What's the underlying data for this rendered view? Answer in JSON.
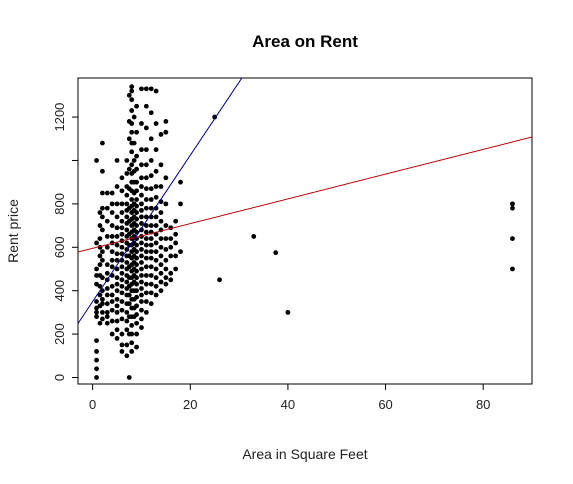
{
  "chart_data": {
    "type": "scatter",
    "title": "Area on Rent",
    "xlabel": "Area in Square Feet",
    "ylabel": "Rent price",
    "xlim": [
      -3,
      90
    ],
    "ylim": [
      -30,
      1380
    ],
    "x_ticks": [
      0,
      20,
      40,
      60,
      80
    ],
    "x_tick_labels": [
      "0",
      "20",
      "40",
      "60",
      "80"
    ],
    "y_ticks": [
      0,
      200,
      400,
      600,
      800,
      1000,
      1200
    ],
    "y_tick_labels": [
      "0",
      "200",
      "400",
      "600",
      "800",
      "",
      "1200"
    ],
    "grid": false,
    "legend": "none",
    "colors": {
      "points": "#000000",
      "red_line": "#c00000",
      "blue_line": "#000080",
      "axis": "#000000"
    },
    "lines": [
      {
        "color": "red",
        "intercept": 595,
        "slope": 5.7
      },
      {
        "color": "blue",
        "intercept": 350,
        "slope": 33.7
      }
    ],
    "points": [
      [
        0.8,
        0
      ],
      [
        0.8,
        40
      ],
      [
        0.8,
        80
      ],
      [
        0.8,
        120
      ],
      [
        0.8,
        170
      ],
      [
        0.8,
        280
      ],
      [
        0.8,
        300
      ],
      [
        0.8,
        320
      ],
      [
        0.8,
        350
      ],
      [
        0.8,
        430
      ],
      [
        0.8,
        470
      ],
      [
        0.8,
        500
      ],
      [
        0.8,
        620
      ],
      [
        0.8,
        1000
      ],
      [
        1.5,
        250
      ],
      [
        1.5,
        330
      ],
      [
        1.5,
        380
      ],
      [
        1.5,
        420
      ],
      [
        1.5,
        470
      ],
      [
        1.5,
        520
      ],
      [
        1.5,
        560
      ],
      [
        1.5,
        600
      ],
      [
        1.5,
        640
      ],
      [
        1.5,
        700
      ],
      [
        1.5,
        760
      ],
      [
        2,
        1080
      ],
      [
        2,
        950
      ],
      [
        2,
        850
      ],
      [
        2,
        780
      ],
      [
        2,
        740
      ],
      [
        2,
        680
      ],
      [
        2,
        580
      ],
      [
        2,
        540
      ],
      [
        2,
        460
      ],
      [
        2,
        400
      ],
      [
        2,
        360
      ],
      [
        2,
        340
      ],
      [
        2,
        300
      ],
      [
        2,
        270
      ],
      [
        3,
        850
      ],
      [
        3,
        780
      ],
      [
        3,
        720
      ],
      [
        3,
        650
      ],
      [
        3,
        600
      ],
      [
        3,
        520
      ],
      [
        3,
        480
      ],
      [
        3,
        450
      ],
      [
        3,
        410
      ],
      [
        3,
        380
      ],
      [
        3,
        340
      ],
      [
        3,
        300
      ],
      [
        3,
        280
      ],
      [
        3,
        250
      ],
      [
        4,
        850
      ],
      [
        4,
        800
      ],
      [
        4,
        760
      ],
      [
        4,
        700
      ],
      [
        4,
        650
      ],
      [
        4,
        620
      ],
      [
        4,
        580
      ],
      [
        4,
        540
      ],
      [
        4,
        510
      ],
      [
        4,
        470
      ],
      [
        4,
        420
      ],
      [
        4,
        380
      ],
      [
        4,
        350
      ],
      [
        4,
        310
      ],
      [
        4,
        260
      ],
      [
        4,
        200
      ],
      [
        5,
        1000
      ],
      [
        5,
        880
      ],
      [
        5,
        800
      ],
      [
        5,
        740
      ],
      [
        5,
        690
      ],
      [
        5,
        650
      ],
      [
        5,
        610
      ],
      [
        5,
        570
      ],
      [
        5,
        540
      ],
      [
        5,
        500
      ],
      [
        5,
        460
      ],
      [
        5,
        430
      ],
      [
        5,
        400
      ],
      [
        5,
        360
      ],
      [
        5,
        330
      ],
      [
        5,
        300
      ],
      [
        5,
        260
      ],
      [
        5,
        220
      ],
      [
        5,
        180
      ],
      [
        6,
        920
      ],
      [
        6,
        860
      ],
      [
        6,
        800
      ],
      [
        6,
        760
      ],
      [
        6,
        720
      ],
      [
        6,
        690
      ],
      [
        6,
        660
      ],
      [
        6,
        630
      ],
      [
        6,
        600
      ],
      [
        6,
        570
      ],
      [
        6,
        540
      ],
      [
        6,
        510
      ],
      [
        6,
        480
      ],
      [
        6,
        450
      ],
      [
        6,
        420
      ],
      [
        6,
        390
      ],
      [
        6,
        350
      ],
      [
        6,
        310
      ],
      [
        6,
        270
      ],
      [
        6,
        200
      ],
      [
        6,
        150
      ],
      [
        6,
        120
      ],
      [
        7,
        1000
      ],
      [
        7,
        940
      ],
      [
        7,
        880
      ],
      [
        7,
        840
      ],
      [
        7,
        800
      ],
      [
        7,
        770
      ],
      [
        7,
        740
      ],
      [
        7,
        710
      ],
      [
        7,
        680
      ],
      [
        7,
        650
      ],
      [
        7,
        620
      ],
      [
        7,
        590
      ],
      [
        7,
        560
      ],
      [
        7,
        530
      ],
      [
        7,
        500
      ],
      [
        7,
        470
      ],
      [
        7,
        440
      ],
      [
        7,
        410
      ],
      [
        7,
        380
      ],
      [
        7,
        340
      ],
      [
        7,
        300
      ],
      [
        7,
        260
      ],
      [
        7,
        220
      ],
      [
        7,
        150
      ],
      [
        7,
        100
      ],
      [
        7.5,
        1180
      ],
      [
        7.5,
        1300
      ],
      [
        7.5,
        1100
      ],
      [
        7.5,
        960
      ],
      [
        7.5,
        870
      ],
      [
        7.5,
        780
      ],
      [
        7.5,
        720
      ],
      [
        7.5,
        660
      ],
      [
        7.5,
        610
      ],
      [
        7.5,
        560
      ],
      [
        7.5,
        510
      ],
      [
        7.5,
        460
      ],
      [
        7.5,
        420
      ],
      [
        7.5,
        380
      ],
      [
        7.5,
        340
      ],
      [
        7.5,
        280
      ],
      [
        7.5,
        200
      ],
      [
        7.5,
        0
      ],
      [
        8,
        1340
      ],
      [
        8,
        1320
      ],
      [
        8,
        1280
      ],
      [
        8,
        1230
      ],
      [
        8,
        1170
      ],
      [
        8,
        1130
      ],
      [
        8,
        1080
      ],
      [
        8,
        1040
      ],
      [
        8,
        980
      ],
      [
        8,
        940
      ],
      [
        8,
        900
      ],
      [
        8,
        860
      ],
      [
        8,
        820
      ],
      [
        8,
        790
      ],
      [
        8,
        760
      ],
      [
        8,
        730
      ],
      [
        8,
        700
      ],
      [
        8,
        670
      ],
      [
        8,
        640
      ],
      [
        8,
        610
      ],
      [
        8,
        580
      ],
      [
        8,
        550
      ],
      [
        8,
        520
      ],
      [
        8,
        490
      ],
      [
        8,
        460
      ],
      [
        8,
        430
      ],
      [
        8,
        400
      ],
      [
        8,
        360
      ],
      [
        8,
        320
      ],
      [
        8,
        280
      ],
      [
        8,
        240
      ],
      [
        8,
        200
      ],
      [
        8,
        160
      ],
      [
        8,
        120
      ],
      [
        8.5,
        1200
      ],
      [
        8.5,
        1080
      ],
      [
        8.5,
        1000
      ],
      [
        8.5,
        950
      ],
      [
        8.5,
        900
      ],
      [
        8.5,
        850
      ],
      [
        8.5,
        800
      ],
      [
        8.5,
        770
      ],
      [
        8.5,
        740
      ],
      [
        8.5,
        710
      ],
      [
        8.5,
        680
      ],
      [
        8.5,
        650
      ],
      [
        8.5,
        620
      ],
      [
        8.5,
        590
      ],
      [
        8.5,
        560
      ],
      [
        8.5,
        530
      ],
      [
        8.5,
        500
      ],
      [
        8.5,
        470
      ],
      [
        8.5,
        440
      ],
      [
        8.5,
        400
      ],
      [
        8.5,
        360
      ],
      [
        8.5,
        320
      ],
      [
        8.5,
        280
      ],
      [
        9,
        1250
      ],
      [
        9,
        1130
      ],
      [
        9,
        1020
      ],
      [
        9,
        960
      ],
      [
        9,
        900
      ],
      [
        9,
        860
      ],
      [
        9,
        820
      ],
      [
        9,
        790
      ],
      [
        9,
        760
      ],
      [
        9,
        730
      ],
      [
        9,
        700
      ],
      [
        9,
        670
      ],
      [
        9,
        640
      ],
      [
        9,
        610
      ],
      [
        9,
        580
      ],
      [
        9,
        550
      ],
      [
        9,
        520
      ],
      [
        9,
        490
      ],
      [
        9,
        460
      ],
      [
        9,
        430
      ],
      [
        9,
        400
      ],
      [
        9,
        370
      ],
      [
        9,
        330
      ],
      [
        9,
        290
      ],
      [
        9,
        250
      ],
      [
        9,
        200
      ],
      [
        9,
        140
      ],
      [
        10,
        1330
      ],
      [
        10,
        1170
      ],
      [
        10,
        1050
      ],
      [
        10,
        980
      ],
      [
        10,
        920
      ],
      [
        10,
        880
      ],
      [
        10,
        840
      ],
      [
        10,
        800
      ],
      [
        10,
        770
      ],
      [
        10,
        740
      ],
      [
        10,
        710
      ],
      [
        10,
        680
      ],
      [
        10,
        650
      ],
      [
        10,
        620
      ],
      [
        10,
        590
      ],
      [
        10,
        560
      ],
      [
        10,
        530
      ],
      [
        10,
        500
      ],
      [
        10,
        470
      ],
      [
        10,
        440
      ],
      [
        10,
        410
      ],
      [
        10,
        380
      ],
      [
        10,
        350
      ],
      [
        10,
        310
      ],
      [
        10,
        270
      ],
      [
        10,
        230
      ],
      [
        11,
        1330
      ],
      [
        11,
        1250
      ],
      [
        11,
        1150
      ],
      [
        11,
        1050
      ],
      [
        11,
        980
      ],
      [
        11,
        920
      ],
      [
        11,
        870
      ],
      [
        11,
        820
      ],
      [
        11,
        780
      ],
      [
        11,
        740
      ],
      [
        11,
        700
      ],
      [
        11,
        670
      ],
      [
        11,
        640
      ],
      [
        11,
        610
      ],
      [
        11,
        580
      ],
      [
        11,
        550
      ],
      [
        11,
        510
      ],
      [
        11,
        470
      ],
      [
        11,
        430
      ],
      [
        11,
        390
      ],
      [
        11,
        350
      ],
      [
        11,
        300
      ],
      [
        12,
        1330
      ],
      [
        12,
        1220
      ],
      [
        12,
        1100
      ],
      [
        12,
        1000
      ],
      [
        12,
        930
      ],
      [
        12,
        870
      ],
      [
        12,
        820
      ],
      [
        12,
        780
      ],
      [
        12,
        740
      ],
      [
        12,
        700
      ],
      [
        12,
        670
      ],
      [
        12,
        640
      ],
      [
        12,
        610
      ],
      [
        12,
        580
      ],
      [
        12,
        550
      ],
      [
        12,
        510
      ],
      [
        12,
        470
      ],
      [
        12,
        430
      ],
      [
        12,
        390
      ],
      [
        12,
        340
      ],
      [
        13,
        1320
      ],
      [
        13,
        1170
      ],
      [
        13,
        1050
      ],
      [
        13,
        950
      ],
      [
        13,
        880
      ],
      [
        13,
        830
      ],
      [
        13,
        780
      ],
      [
        13,
        740
      ],
      [
        13,
        700
      ],
      [
        13,
        660
      ],
      [
        13,
        620
      ],
      [
        13,
        580
      ],
      [
        13,
        540
      ],
      [
        13,
        500
      ],
      [
        13,
        460
      ],
      [
        13,
        420
      ],
      [
        13,
        380
      ],
      [
        14,
        1120
      ],
      [
        14,
        980
      ],
      [
        14,
        880
      ],
      [
        14,
        810
      ],
      [
        14,
        760
      ],
      [
        14,
        720
      ],
      [
        14,
        680
      ],
      [
        14,
        640
      ],
      [
        14,
        600
      ],
      [
        14,
        560
      ],
      [
        14,
        520
      ],
      [
        14,
        480
      ],
      [
        14,
        440
      ],
      [
        14,
        400
      ],
      [
        15,
        1180
      ],
      [
        15,
        1130
      ],
      [
        15,
        920
      ],
      [
        15,
        800
      ],
      [
        15,
        700
      ],
      [
        15,
        640
      ],
      [
        15,
        590
      ],
      [
        15,
        540
      ],
      [
        15,
        500
      ],
      [
        15,
        460
      ],
      [
        15,
        430
      ],
      [
        16,
        690
      ],
      [
        16,
        640
      ],
      [
        16,
        600
      ],
      [
        16,
        560
      ],
      [
        16,
        480
      ],
      [
        16,
        450
      ],
      [
        17,
        720
      ],
      [
        17,
        660
      ],
      [
        17,
        620
      ],
      [
        17,
        560
      ],
      [
        17,
        500
      ],
      [
        18,
        900
      ],
      [
        18,
        800
      ],
      [
        18,
        580
      ],
      [
        25,
        1200
      ],
      [
        26,
        450
      ],
      [
        33,
        650
      ],
      [
        37.5,
        575
      ],
      [
        40,
        300
      ],
      [
        86,
        800
      ],
      [
        86,
        780
      ],
      [
        86,
        640
      ],
      [
        86,
        500
      ]
    ]
  }
}
